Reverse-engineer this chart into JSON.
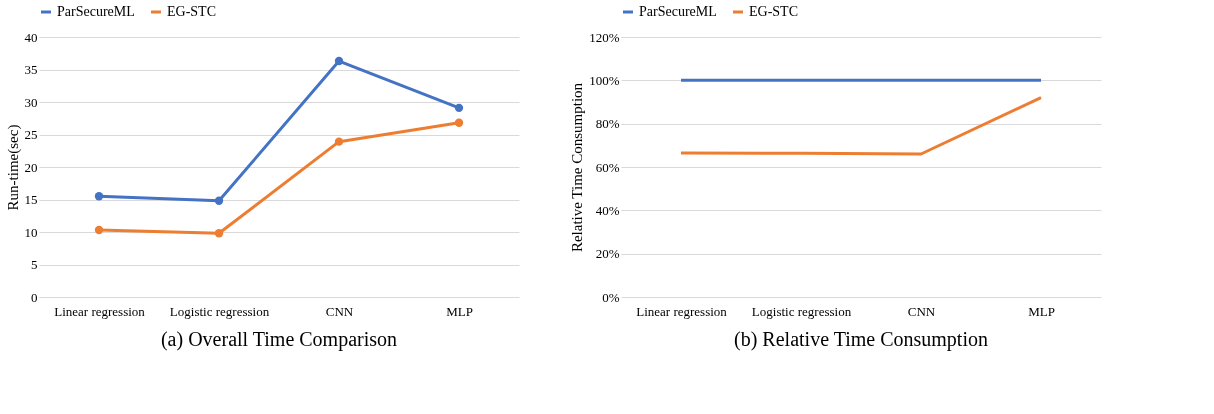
{
  "chart_data": [
    {
      "type": "line",
      "title": "(a)  Overall Time Comparison",
      "ylabel": "Run-time(sec)",
      "categories": [
        "Linear regression",
        "Logistic regression",
        "CNN",
        "MLP"
      ],
      "series": [
        {
          "name": "ParSecureML",
          "color": "#4472c4",
          "values": [
            15.5,
            14.8,
            36.3,
            29.1
          ]
        },
        {
          "name": "EG-STC",
          "color": "#ed7d31",
          "values": [
            10.3,
            9.8,
            23.9,
            26.8
          ]
        }
      ],
      "ylim": [
        0,
        40
      ],
      "yticks": [
        0,
        5,
        10,
        15,
        20,
        25,
        30,
        35,
        40
      ],
      "grid": "y",
      "legend": "top",
      "marker": "circle",
      "line_style": "solid"
    },
    {
      "type": "line",
      "title": "(b) Relative Time Consumption",
      "ylabel": "Relative Time Consumption",
      "categories": [
        "Linear regression",
        "Logistic regression",
        "CNN",
        "MLP"
      ],
      "series": [
        {
          "name": "ParSecureML",
          "color": "#4472c4",
          "values": [
            100,
            100,
            100,
            100
          ]
        },
        {
          "name": "EG-STC",
          "color": "#ed7d31",
          "values": [
            66.5,
            66.3,
            66,
            92
          ]
        }
      ],
      "ylim": [
        0,
        120
      ],
      "yticks": [
        {
          "value": 0,
          "label": "0%"
        },
        {
          "value": 20,
          "label": "20%"
        },
        {
          "value": 40,
          "label": "40%"
        },
        {
          "value": 60,
          "label": "60%"
        },
        {
          "value": 80,
          "label": "80%"
        },
        {
          "value": 100,
          "label": "100%"
        },
        {
          "value": 120,
          "label": "120%"
        }
      ],
      "grid": "y",
      "legend": "top",
      "marker": "none",
      "line_style": "solid"
    }
  ]
}
